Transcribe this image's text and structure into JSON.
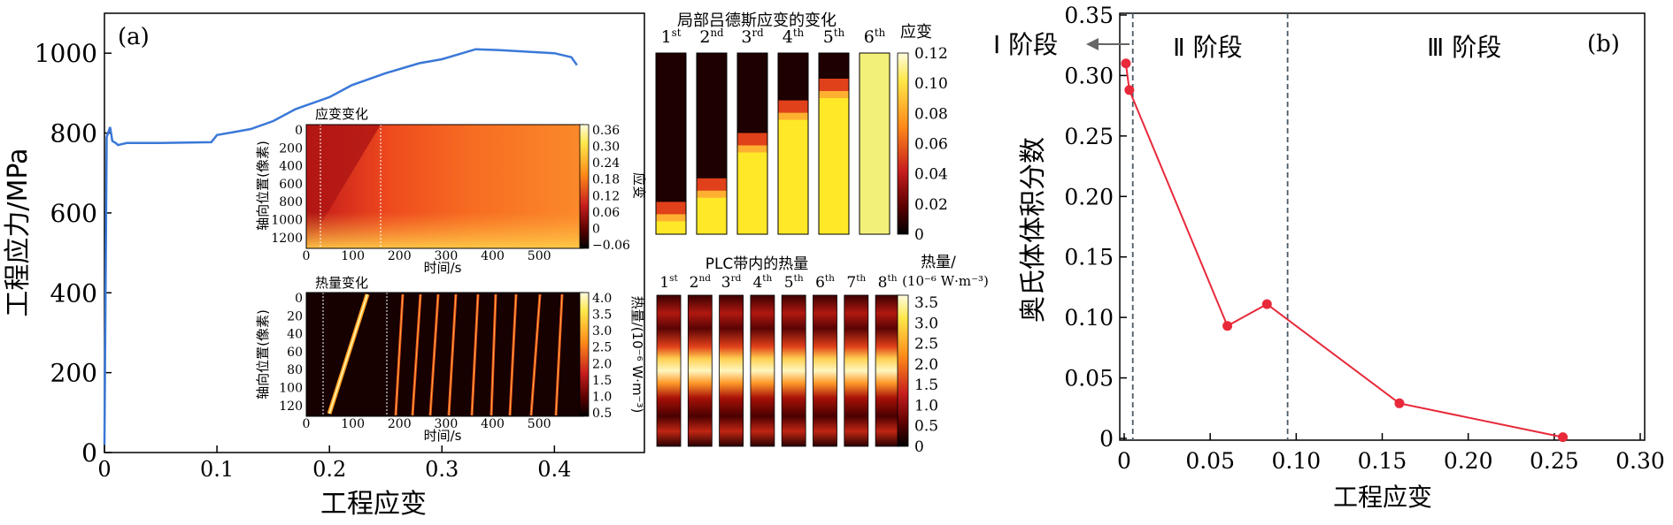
{
  "panel_a": {
    "label": "(a)",
    "ylabel": "工程应力/MPa",
    "xlabel": "工程应变",
    "yticks": [
      "0",
      "200",
      "400",
      "600",
      "800",
      "1000"
    ],
    "xticks": [
      "0",
      "0.1",
      "0.2",
      "0.3",
      "0.4"
    ],
    "inset_strain": {
      "title": "应变变化",
      "ylabel": "轴向位置(像素)",
      "xlabel": "时间/s",
      "yticks": [
        "0",
        "200",
        "400",
        "600",
        "800",
        "1000",
        "1200"
      ],
      "xticks": [
        "0",
        "100",
        "200",
        "300",
        "400",
        "500"
      ],
      "cbar_label": "应变",
      "cbar_ticks": [
        "0.36",
        "0.30",
        "0.24",
        "0.18",
        "0.12",
        "0.06",
        "0",
        "−0.06"
      ]
    },
    "inset_heat": {
      "title": "热量变化",
      "ylabel": "轴向位置(像素)",
      "xlabel": "时间/s",
      "yticks": [
        "0",
        "20",
        "40",
        "60",
        "80",
        "100",
        "120"
      ],
      "xticks": [
        "0",
        "100",
        "200",
        "300",
        "400",
        "500"
      ],
      "cbar_label": "热量/(10⁻⁶ W·m⁻³)",
      "cbar_ticks": [
        "4.0",
        "3.5",
        "3.0",
        "2.5",
        "2.0",
        "1.5",
        "1.0",
        "0.5"
      ]
    },
    "luders": {
      "title": "局部吕德斯应变的变化",
      "cbar_label": "应变",
      "frames": [
        "1st",
        "2nd",
        "3rd",
        "4th",
        "5th",
        "6th"
      ],
      "cbar_ticks": [
        "0.12",
        "0.10",
        "0.08",
        "0.06",
        "0.04",
        "0.02",
        "0"
      ]
    },
    "plc": {
      "title": "PLC带内的热量",
      "cbar_label_1": "热量/",
      "cbar_label_2": "(10⁻⁶ W·m⁻³)",
      "frames": [
        "1st",
        "2nd",
        "3rd",
        "4th",
        "5th",
        "6th",
        "7th",
        "8th"
      ],
      "cbar_ticks": [
        "3.5",
        "3.0",
        "2.5",
        "2.0",
        "1.5",
        "1.0",
        "0.5",
        "0"
      ]
    }
  },
  "panel_b": {
    "label": "(b)",
    "ylabel": "奥氏体体积分数",
    "xlabel": "工程应变",
    "stage1": "Ⅰ 阶段",
    "stage2": "Ⅱ 阶段",
    "stage3": "Ⅲ 阶段",
    "yticks": [
      "0",
      "0.05",
      "0.10",
      "0.15",
      "0.20",
      "0.25",
      "0.30",
      "0.35"
    ],
    "xticks": [
      "0",
      "0.05",
      "0.10",
      "0.15",
      "0.20",
      "0.25",
      "0.30"
    ]
  },
  "chart_data": [
    {
      "type": "line",
      "title": "",
      "xlabel": "工程应变",
      "ylabel": "工程应力/MPa",
      "xlim": [
        0,
        0.48
      ],
      "ylim": [
        0,
        1100
      ],
      "color": "#3a78d8",
      "x": [
        0,
        0.002,
        0.005,
        0.007,
        0.01,
        0.012,
        0.015,
        0.02,
        0.05,
        0.095,
        0.1,
        0.13,
        0.15,
        0.17,
        0.2,
        0.22,
        0.25,
        0.28,
        0.3,
        0.33,
        0.35,
        0.4,
        0.415,
        0.42
      ],
      "y": [
        20,
        790,
        815,
        780,
        775,
        770,
        772,
        775,
        775,
        777,
        795,
        810,
        830,
        860,
        890,
        920,
        950,
        975,
        985,
        1010,
        1008,
        1000,
        990,
        970
      ]
    },
    {
      "type": "line",
      "title": "",
      "xlabel": "工程应变",
      "ylabel": "奥氏体体积分数",
      "xlim": [
        0,
        0.3
      ],
      "ylim": [
        0,
        0.35
      ],
      "color": "#e8293a",
      "x": [
        0.001,
        0.003,
        0.06,
        0.083,
        0.16,
        0.255
      ],
      "y": [
        0.31,
        0.288,
        0.093,
        0.111,
        0.029,
        0.001
      ],
      "stage_boundaries": [
        0.005,
        0.095
      ]
    }
  ]
}
